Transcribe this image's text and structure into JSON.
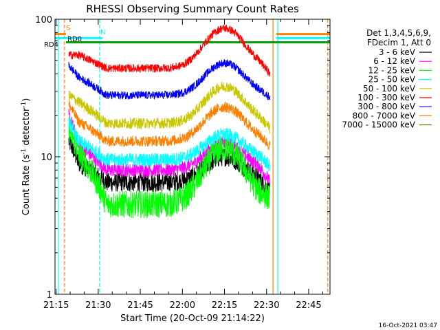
{
  "chart_data": {
    "type": "line",
    "title": "RHESSI Observing Summary Count Rates",
    "xlabel": "Start Time (20-Oct-09 21:14:22)",
    "ylabel_main": "Count Rate (s",
    "ylabel_sup1": "-1",
    "ylabel_mid": " detector",
    "ylabel_sup2": "-1",
    "ylabel_end": ")",
    "yscale": "log",
    "ylim": [
      1,
      100
    ],
    "xlim_minutes": [
      -0.4,
      97.6
    ],
    "x_ticks": [
      {
        "label": "21:15",
        "t": 0
      },
      {
        "label": "21:30",
        "t": 15
      },
      {
        "label": "21:45",
        "t": 30
      },
      {
        "label": "22:00",
        "t": 45
      },
      {
        "label": "22:15",
        "t": 60
      },
      {
        "label": "22:30",
        "t": 75
      },
      {
        "label": "22:45",
        "t": 90
      }
    ],
    "y_ticks": [
      {
        "label": "1",
        "v": 1
      },
      {
        "label": "10",
        "v": 10
      },
      {
        "label": "100",
        "v": 100
      }
    ],
    "legend_header": [
      "Det 1,3,4,5,6,9,",
      "FDecim 1, Att 0"
    ],
    "legend_position": "right",
    "series": [
      {
        "name": "3 - 6 keV",
        "color": "#000000",
        "start": 13,
        "edge": 9.0,
        "base": 6.5,
        "amp": 3.5,
        "end": 5.5,
        "noise": 0.07
      },
      {
        "name": "6 - 12 keV",
        "color": "#ff00ff",
        "start": 20,
        "edge": 12.0,
        "base": 8.0,
        "amp": 4.5,
        "end": 6.5,
        "noise": 0.05
      },
      {
        "name": "12 - 25 keV",
        "color": "#00ff00",
        "start": 16,
        "edge": 10.5,
        "base": 4.5,
        "amp": 7.0,
        "end": 5.0,
        "noise": 0.1
      },
      {
        "name": "25 - 50 keV",
        "color": "#00ffff",
        "start": 18,
        "edge": 13.0,
        "base": 9.5,
        "amp": 5.0,
        "end": 8.5,
        "noise": 0.05
      },
      {
        "name": "50 - 100 keV",
        "color": "#c8c800",
        "start": 28,
        "edge": 25.0,
        "base": 17.5,
        "amp": 15.0,
        "end": 16.0,
        "noise": 0.04
      },
      {
        "name": "100 - 300 keV",
        "color": "#ff0000",
        "start": 55,
        "edge": 55.0,
        "base": 44.0,
        "amp": 42.0,
        "end": 40.0,
        "noise": 0.03
      },
      {
        "name": "300 - 800 keV",
        "color": "#0000ff",
        "start": 46,
        "edge": 38.0,
        "base": 28.0,
        "amp": 20.0,
        "end": 27.0,
        "noise": 0.03
      },
      {
        "name": "800 - 7000 keV",
        "color": "#ff8000",
        "start": 24,
        "edge": 18.0,
        "base": 13.0,
        "amp": 10.0,
        "end": 12.0,
        "noise": 0.04
      },
      {
        "name": "7000 - 15000 keV",
        "color": "#808000",
        "start": 0,
        "edge": 0,
        "base": 0,
        "amp": 0,
        "end": 0,
        "noise": 0
      }
    ],
    "data_span_minutes": [
      4.5,
      76.2
    ],
    "peak_minutes": 60,
    "flags": [
      {
        "label": "S",
        "color": "#ff8000",
        "value": 78
      },
      {
        "label": "N",
        "color": "#00ffff",
        "value": 73
      },
      {
        "label": "RD0",
        "color": "#00a000",
        "value": 68
      },
      {
        "label": "RD4",
        "color": "#00a000",
        "value": 62
      }
    ],
    "flag_segments": [
      {
        "label": "S",
        "from": -0.4,
        "to": 3.5
      },
      {
        "label": "S",
        "from": 78.5,
        "to": 97.6
      },
      {
        "label": "N",
        "from": -0.4,
        "to": 16.5
      },
      {
        "label": "N",
        "from": 78.5,
        "to": 97.6
      },
      {
        "label": "RD0",
        "from": 3.5,
        "to": 97.6
      }
    ],
    "vertical_markers": [
      {
        "t": 0.8,
        "color": "#00ffff",
        "style": "solid"
      },
      {
        "t": 3.0,
        "color": "#ff8000",
        "style": "dashed"
      },
      {
        "t": 15.5,
        "color": "#00ffff",
        "style": "dashed"
      },
      {
        "t": 77.3,
        "color": "#ff8000",
        "style": "solid"
      },
      {
        "t": 79.0,
        "color": "#00ffff",
        "style": "solid"
      },
      {
        "t": 96.8,
        "color": "#ff8000",
        "style": "dashed"
      }
    ],
    "footer_timestamp": "16-Oct-2021 03:47"
  }
}
